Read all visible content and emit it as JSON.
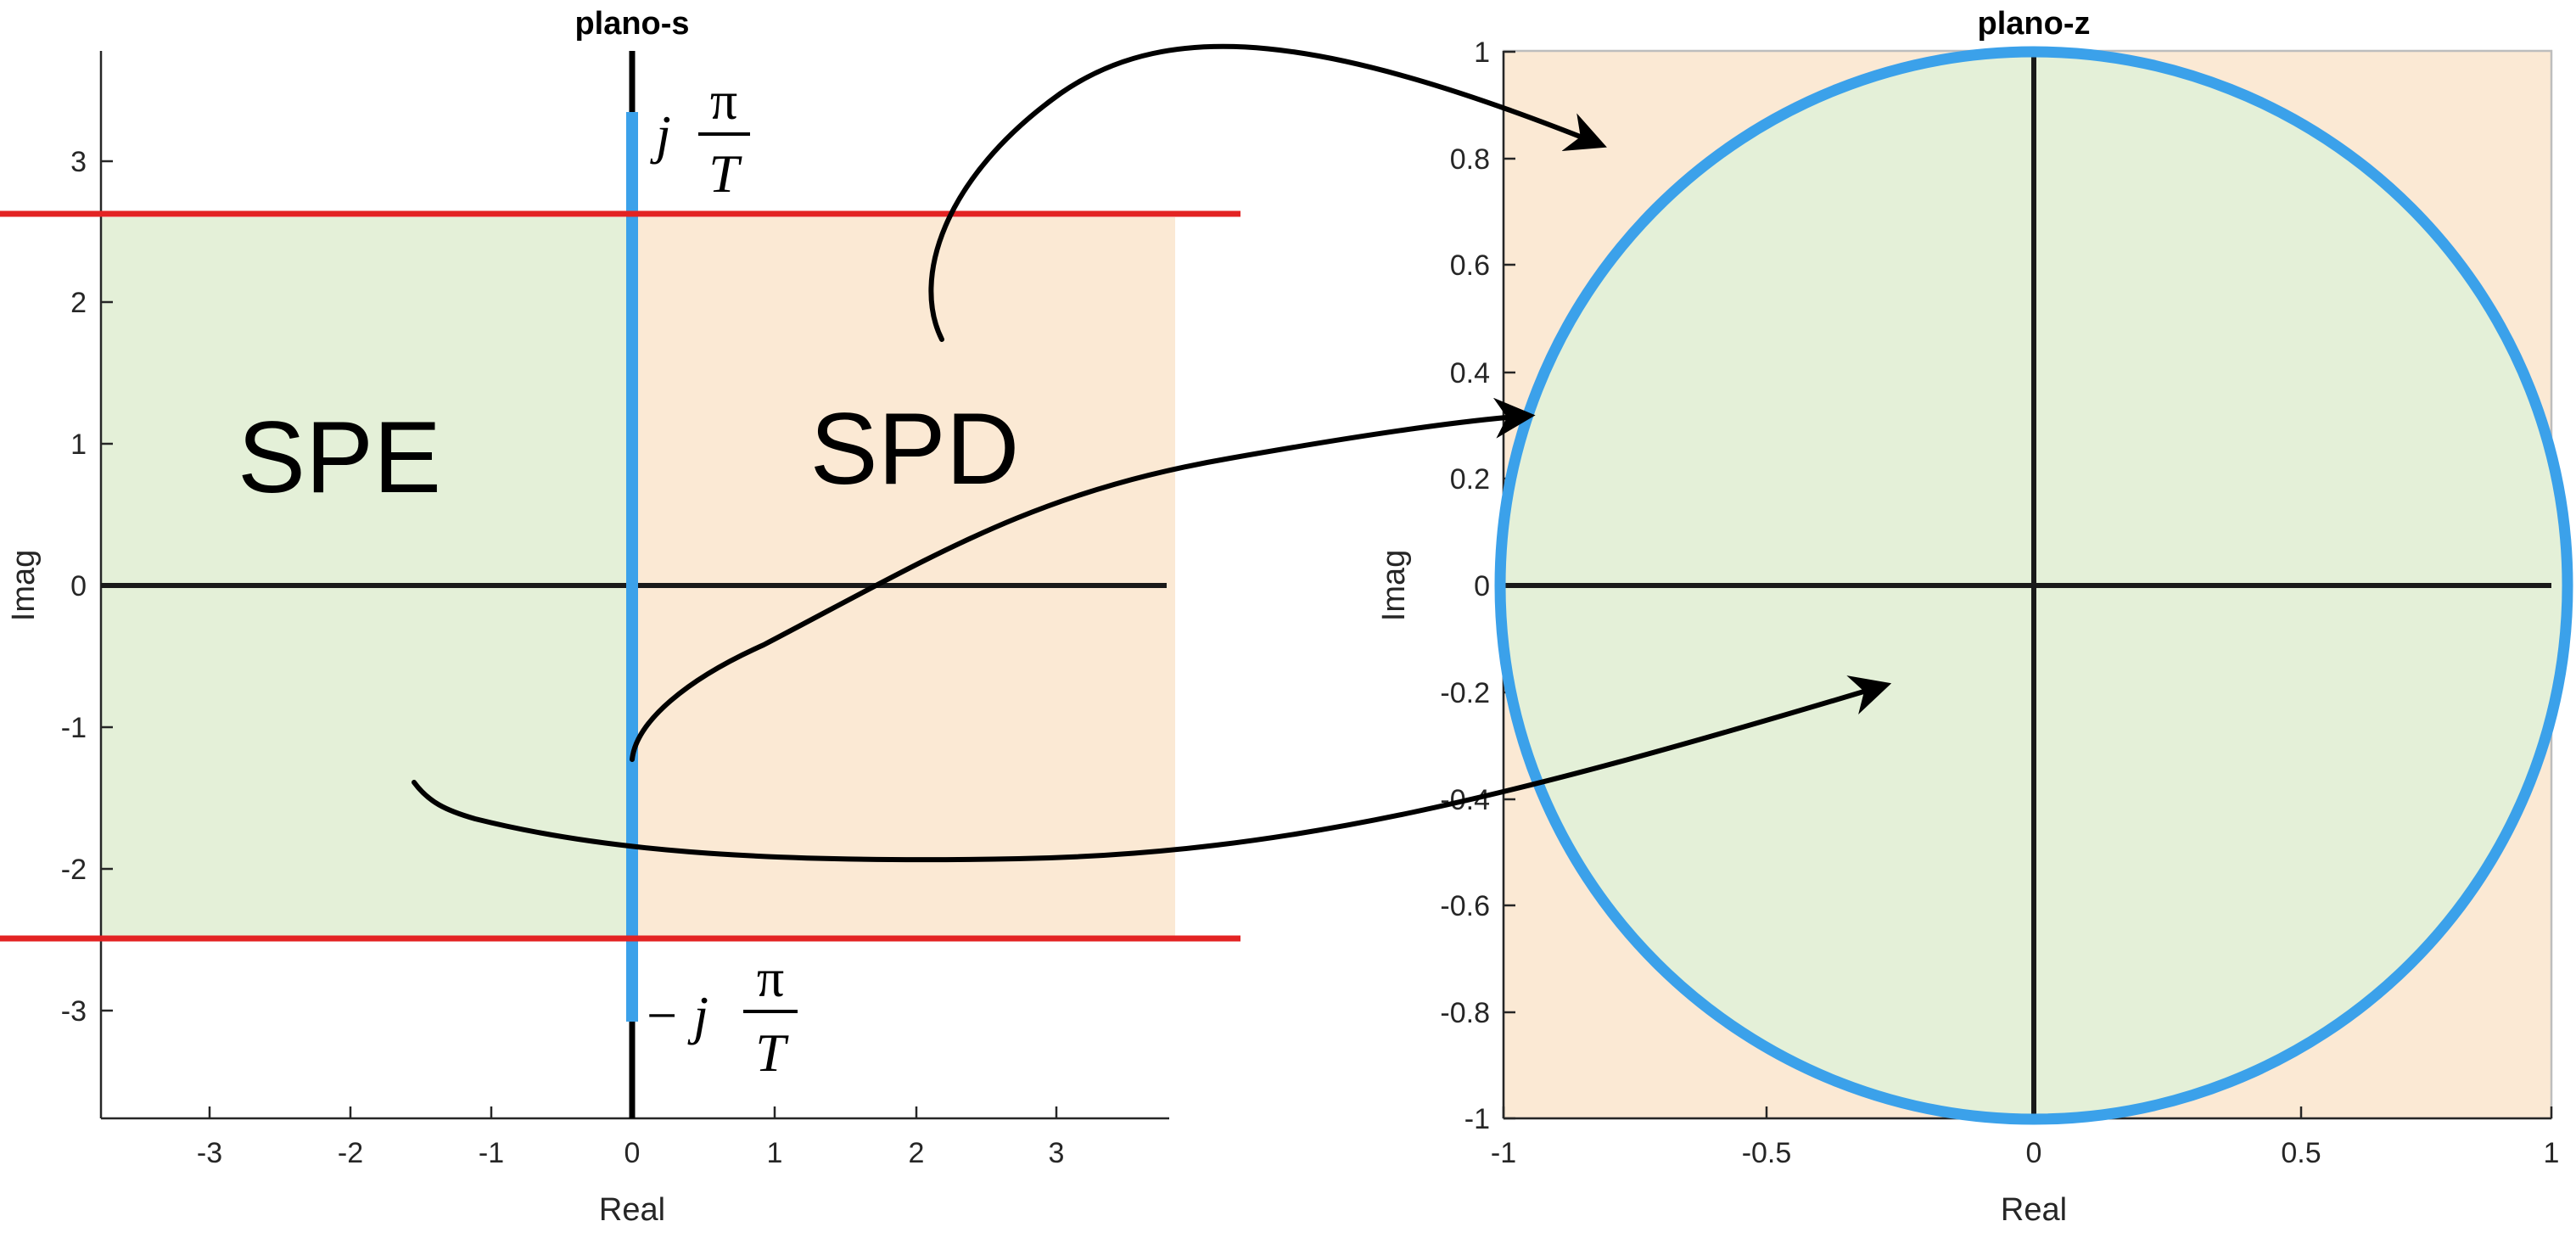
{
  "s_plane": {
    "title": "plano-s",
    "xlabel": "Real",
    "ylabel": "Imag",
    "xticks": [
      "-3",
      "-2",
      "-1",
      "0",
      "1",
      "2",
      "3"
    ],
    "yticks": [
      "3",
      "2",
      "1",
      "0",
      "-1",
      "-2",
      "-3"
    ],
    "region_left_label": "SPE",
    "region_right_label": "SPD",
    "top_label": {
      "prefix": "j",
      "num": "π",
      "den": "T"
    },
    "bottom_label": {
      "prefix": "− j",
      "num": "π",
      "den": "T"
    }
  },
  "z_plane": {
    "title": "plano-z",
    "xlabel": "Real",
    "ylabel": "Imag",
    "xticks": [
      "-1",
      "-0.5",
      "0",
      "0.5",
      "1"
    ],
    "yticks": [
      "1",
      "0.8",
      "0.6",
      "0.4",
      "0.2",
      "0",
      "-0.2",
      "-0.4",
      "-0.6",
      "-0.8",
      "-1"
    ]
  },
  "colors": {
    "left_half_plane": "#e4f0d8",
    "right_half_plane": "#fbe9d4",
    "unit_circle": "#3ba1ea",
    "imag_axis_segment": "#3ba1ea",
    "band_limits": "#e32323",
    "axes": "#1a1a1a"
  }
}
